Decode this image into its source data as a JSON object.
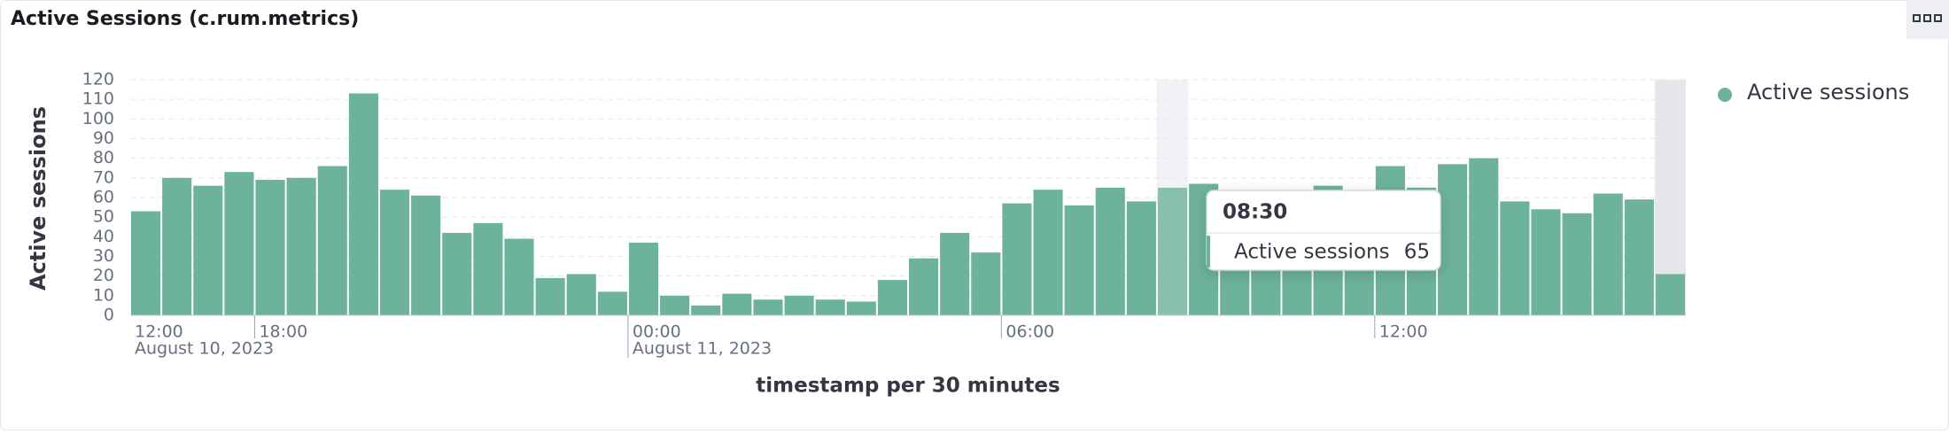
{
  "header": {
    "title": "Active Sessions (c.rum.metrics)"
  },
  "chart_data": {
    "type": "bar",
    "y_label": "Active sessions",
    "x_label": "timestamp per 30 minutes",
    "categories": [
      "16:00",
      "16:30",
      "17:00",
      "17:30",
      "18:00",
      "18:30",
      "19:00",
      "19:30",
      "20:00",
      "20:30",
      "21:00",
      "21:30",
      "22:00",
      "22:30",
      "23:00",
      "23:30",
      "00:00",
      "00:30",
      "01:00",
      "01:30",
      "02:00",
      "02:30",
      "03:00",
      "03:30",
      "04:00",
      "04:30",
      "05:00",
      "05:30",
      "06:00",
      "06:30",
      "07:00",
      "07:30",
      "08:00",
      "08:30",
      "09:00",
      "09:30",
      "10:00",
      "10:30",
      "11:00",
      "11:30",
      "12:00",
      "12:30",
      "13:00",
      "13:30",
      "14:00",
      "14:30",
      "15:00",
      "15:30",
      "16:00",
      "16:30"
    ],
    "series": [
      {
        "name": "Active sessions",
        "color": "#6dB39a",
        "values": [
          53,
          70,
          66,
          73,
          69,
          70,
          76,
          113,
          64,
          61,
          42,
          47,
          39,
          19,
          21,
          12,
          37,
          10,
          5,
          11,
          8,
          10,
          8,
          7,
          18,
          29,
          42,
          32,
          57,
          64,
          56,
          65,
          58,
          65,
          67,
          60,
          58,
          62,
          66,
          63,
          76,
          65,
          77,
          80,
          58,
          54,
          52,
          62,
          59,
          21
        ]
      }
    ],
    "ylim": [
      0,
      120
    ],
    "yticks": [
      0,
      10,
      20,
      30,
      40,
      50,
      60,
      70,
      80,
      90,
      100,
      110,
      120
    ],
    "grid": true,
    "xticks": [
      {
        "value": null,
        "label": "12:00",
        "date": "August 10, 2023"
      },
      {
        "value": "18:00",
        "label": "18:00"
      },
      {
        "value": "00:00",
        "label": "00:00",
        "date": "August 11, 2023"
      },
      {
        "value": "06:00",
        "label": "06:00"
      },
      {
        "value": "12:00",
        "label": "12:00"
      }
    ],
    "legend": "top-right",
    "highlight_index": 33
  }
}
